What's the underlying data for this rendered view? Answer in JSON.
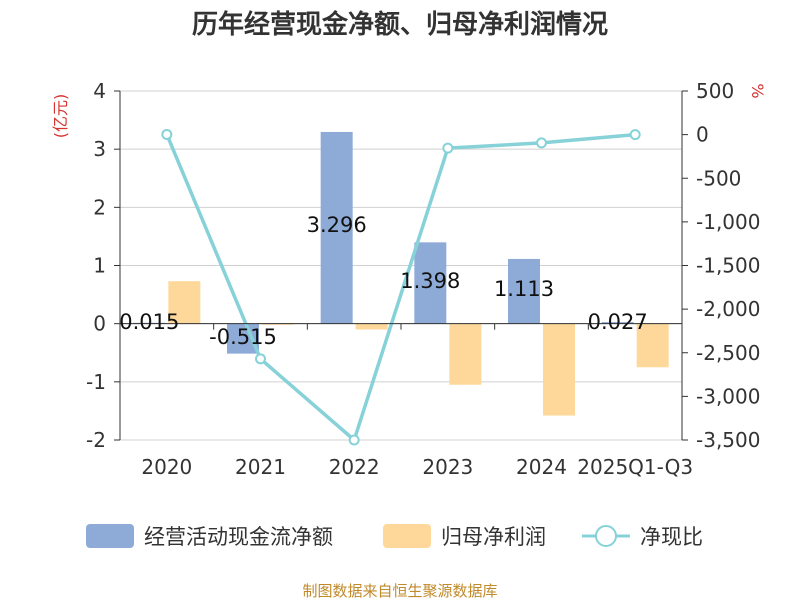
{
  "chart_data": {
    "type": "bar",
    "title": "历年经营现金净额、归母净利润情况",
    "categories": [
      "2020",
      "2021",
      "2022",
      "2023",
      "2024",
      "2025Q1-Q3"
    ],
    "series": [
      {
        "name": "经营活动现金流净额",
        "type": "bar",
        "axis": "left",
        "color": "#8eabd8",
        "values": [
          0.015,
          -0.515,
          3.296,
          1.398,
          1.113,
          0.027
        ],
        "labels": [
          "0.015",
          "-0.515",
          "3.296",
          "1.398",
          "1.113",
          "0.027"
        ]
      },
      {
        "name": "归母净利润",
        "type": "bar",
        "axis": "left",
        "color": "#fdd89a",
        "values": [
          0.73,
          -0.02,
          -0.1,
          -1.05,
          -1.58,
          -0.75
        ]
      },
      {
        "name": "净现比",
        "type": "line",
        "axis": "right",
        "color": "#86d2d8",
        "values": [
          2,
          -2570,
          -3500,
          -155,
          -95,
          0
        ]
      }
    ],
    "y_left": {
      "unit": "(亿元)",
      "ylim": [
        -2,
        4
      ],
      "ticks": [
        4,
        3,
        2,
        1,
        0,
        -1,
        -2
      ],
      "tick_labels": [
        "4",
        "3",
        "2",
        "1",
        "0",
        "-1",
        "-2"
      ]
    },
    "y_right": {
      "unit": "%",
      "ylim": [
        -3500,
        500
      ],
      "ticks": [
        500,
        0,
        -500,
        -1000,
        -1500,
        -2000,
        -2500,
        -3000,
        -3500
      ],
      "tick_labels": [
        "500",
        "0",
        "-500",
        "-1,000",
        "-1,500",
        "-2,000",
        "-2,500",
        "-3,000",
        "-3,500"
      ]
    },
    "grid": true,
    "legend_position": "bottom"
  },
  "source": "制图数据来自恒生聚源数据库"
}
